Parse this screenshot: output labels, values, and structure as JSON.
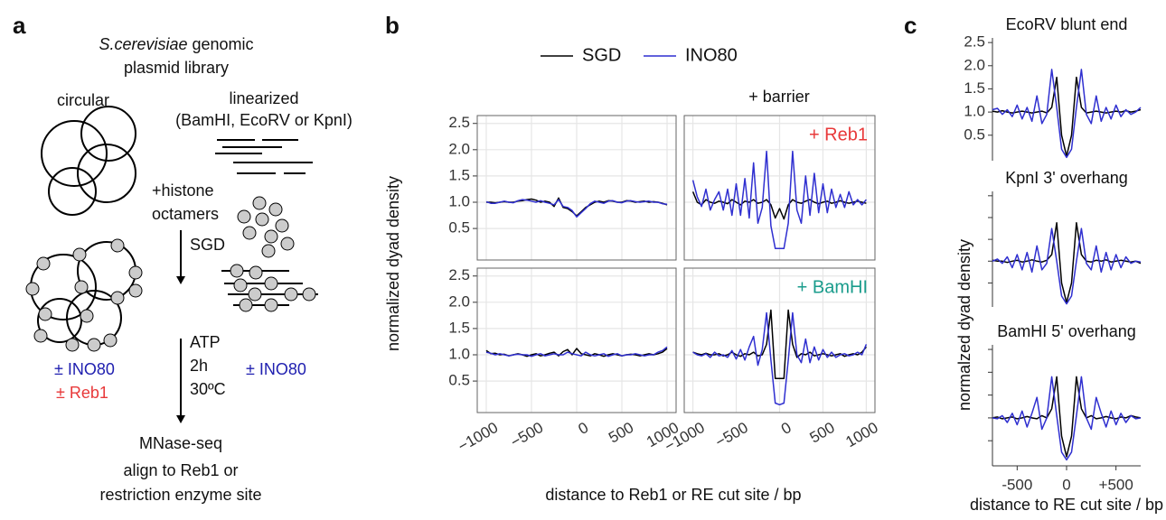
{
  "panel_labels": [
    "a",
    "b",
    "c"
  ],
  "diagram": {
    "title_species": "S.cerevisiae",
    "title_rest": " genomic",
    "title_line2": "plasmid library",
    "circular": "circular",
    "linearized": "linearized",
    "enzymes": "(BamHI, EcoRV or KpnI)",
    "histone_1": "+histone",
    "histone_2": "octamers",
    "sgd": "SGD",
    "atp": "ATP",
    "time": "2h",
    "temp": "30ºC",
    "ino80_left": "± INO80",
    "reb1_left": "± Reb1",
    "ino80_right": "± INO80",
    "mnase": "MNase-seq",
    "align_1": "align to Reb1 or",
    "align_2": "restriction enzyme site"
  },
  "panel_b": {
    "xlabel": "distance to Reb1 or RE cut site / bp",
    "ylabel": "normalized dyad density",
    "facet_header": "+ barrier"
  },
  "panel_c": {
    "xlabel": "distance to RE cut site / bp",
    "ylabel": "normalzed dyad density"
  },
  "chart_data": [
    {
      "type": "line",
      "xlim": [
        -1100,
        1100
      ],
      "ylim": [
        -0.1,
        2.65
      ],
      "xticks": [
        -1000,
        -500,
        0,
        500,
        1000
      ],
      "yticks": [
        0.5,
        {
          "value": 1.0,
          "label": "1.0"
        },
        1.5,
        {
          "value": 2.0,
          "label": "2.0"
        },
        2.5
      ],
      "x": [
        -1000,
        -950,
        -900,
        -850,
        -800,
        -750,
        -700,
        -650,
        -600,
        -550,
        -500,
        -450,
        -400,
        -350,
        -300,
        -250,
        -200,
        -150,
        -100,
        -50,
        0,
        50,
        100,
        150,
        200,
        250,
        300,
        350,
        400,
        450,
        500,
        550,
        600,
        650,
        700,
        750,
        800,
        850,
        900,
        950,
        1000
      ],
      "series": [
        {
          "name": "SGD",
          "color": "#000000",
          "values": [
            1.0,
            1.0,
            0.99,
            1.0,
            1.01,
            1.0,
            1.0,
            1.02,
            1.03,
            1.05,
            1.06,
            1.04,
            1.0,
            1.02,
            1.0,
            0.92,
            1.08,
            0.9,
            0.88,
            0.82,
            0.74,
            0.82,
            0.9,
            0.95,
            1.0,
            1.02,
            1.0,
            1.03,
            1.02,
            1.0,
            1.0,
            1.03,
            1.02,
            1.0,
            1.01,
            1.02,
            1.0,
            1.01,
            1.0,
            0.98,
            0.95
          ]
        },
        {
          "name": "INO80",
          "color": "#2f2fd0",
          "values": [
            1.01,
            0.98,
            0.98,
            1.0,
            1.02,
            1.0,
            0.99,
            1.03,
            1.05,
            1.04,
            1.02,
            1.0,
            1.03,
            1.0,
            0.98,
            0.95,
            1.05,
            0.92,
            0.9,
            0.84,
            0.72,
            0.8,
            0.88,
            0.97,
            1.02,
            1.0,
            0.98,
            1.02,
            1.03,
            1.0,
            0.99,
            1.02,
            1.03,
            1.01,
            1.0,
            1.01,
            1.02,
            1.0,
            1.0,
            0.97,
            0.96
          ]
        }
      ]
    },
    {
      "type": "line",
      "xlim": [
        -1100,
        1100
      ],
      "ylim": [
        -0.1,
        2.65
      ],
      "xticks": [
        -1000,
        -500,
        0,
        500,
        1000
      ],
      "yticks": [
        0.5,
        1.0,
        1.5,
        2.0,
        2.5
      ],
      "annotation": "+ Reb1",
      "annotation_color": "#e8393a",
      "x": [
        -1000,
        -950,
        -900,
        -850,
        -800,
        -750,
        -700,
        -650,
        -600,
        -550,
        -500,
        -450,
        -400,
        -350,
        -300,
        -250,
        -200,
        -150,
        -100,
        -50,
        0,
        50,
        100,
        150,
        200,
        250,
        300,
        350,
        400,
        450,
        500,
        550,
        600,
        650,
        700,
        750,
        800,
        850,
        900,
        950,
        1000
      ],
      "series": [
        {
          "color": "#000000",
          "values": [
            1.2,
            1.0,
            0.95,
            1.05,
            1.0,
            0.98,
            1.02,
            1.0,
            0.97,
            1.05,
            1.0,
            0.95,
            1.02,
            1.0,
            1.05,
            0.98,
            1.0,
            1.05,
            0.95,
            0.7,
            0.88,
            0.68,
            0.95,
            1.05,
            1.0,
            0.98,
            1.02,
            1.05,
            1.0,
            0.97,
            1.0,
            1.02,
            0.98,
            1.0,
            1.03,
            1.0,
            0.98,
            1.0,
            1.02,
            1.0,
            0.98
          ]
        },
        {
          "color": "#2f2fd0",
          "values": [
            1.42,
            1.1,
            0.92,
            1.25,
            0.85,
            1.05,
            1.2,
            0.85,
            1.25,
            0.75,
            1.35,
            0.75,
            1.45,
            0.7,
            1.75,
            0.6,
            0.9,
            1.97,
            0.55,
            0.12,
            0.12,
            0.12,
            0.6,
            1.97,
            0.85,
            0.6,
            1.5,
            0.75,
            1.55,
            0.8,
            1.35,
            0.8,
            1.25,
            0.9,
            1.15,
            0.9,
            1.2,
            0.95,
            1.05,
            0.95,
            1.05
          ]
        }
      ]
    },
    {
      "type": "line",
      "xlim": [
        -1100,
        1100
      ],
      "ylim": [
        -0.1,
        2.65
      ],
      "xticks": [
        {
          "value": -1000,
          "label": "−1000"
        },
        {
          "value": -500,
          "label": "−500"
        },
        0,
        500,
        1000
      ],
      "yticks": [
        0.5,
        {
          "value": 1.0,
          "label": "1.0"
        },
        1.5,
        {
          "value": 2.0,
          "label": "2.0"
        },
        2.5
      ],
      "x": [
        -1000,
        -950,
        -900,
        -850,
        -800,
        -750,
        -700,
        -650,
        -600,
        -550,
        -500,
        -450,
        -400,
        -350,
        -300,
        -250,
        -200,
        -150,
        -100,
        -50,
        0,
        50,
        100,
        150,
        200,
        250,
        300,
        350,
        400,
        450,
        500,
        550,
        600,
        650,
        700,
        750,
        800,
        850,
        900,
        950,
        1000
      ],
      "series": [
        {
          "color": "#000000",
          "values": [
            1.08,
            1.02,
            1.03,
            1.0,
            1.01,
            0.98,
            1.0,
            1.02,
            1.0,
            0.97,
            1.0,
            1.02,
            0.98,
            1.0,
            1.03,
            1.05,
            0.98,
            1.06,
            1.1,
            1.0,
            1.12,
            1.02,
            1.0,
            0.98,
            1.02,
            1.0,
            0.97,
            1.0,
            1.02,
            1.0,
            0.98,
            1.0,
            1.01,
            1.0,
            0.98,
            1.0,
            1.02,
            1.0,
            1.02,
            1.05,
            1.12
          ]
        },
        {
          "color": "#2f2fd0",
          "values": [
            1.05,
            1.03,
            1.0,
            1.02,
            1.0,
            0.98,
            1.0,
            1.01,
            1.0,
            1.0,
            0.97,
            1.0,
            1.02,
            0.98,
            1.0,
            1.02,
            1.0,
            1.0,
            1.05,
            1.02,
            1.0,
            0.98,
            1.05,
            1.0,
            0.98,
            1.0,
            1.02,
            0.97,
            1.0,
            1.02,
            0.98,
            1.0,
            1.0,
            1.02,
            1.0,
            0.98,
            1.0,
            1.0,
            1.05,
            1.08,
            1.15
          ]
        }
      ]
    },
    {
      "type": "line",
      "xlim": [
        -1100,
        1100
      ],
      "ylim": [
        -0.1,
        2.65
      ],
      "xticks": [
        {
          "value": -1000,
          "label": "−1000"
        },
        {
          "value": -500,
          "label": "−500"
        },
        0,
        500,
        1000
      ],
      "yticks": [
        0.5,
        1.0,
        1.5,
        2.0,
        2.5
      ],
      "annotation": "+ BamHI",
      "annotation_color": "#1a9c8c",
      "x": [
        -1000,
        -950,
        -900,
        -850,
        -800,
        -750,
        -700,
        -650,
        -600,
        -550,
        -500,
        -450,
        -400,
        -350,
        -300,
        -250,
        -200,
        -150,
        -100,
        -50,
        0,
        50,
        100,
        150,
        200,
        250,
        300,
        350,
        400,
        450,
        500,
        550,
        600,
        650,
        700,
        750,
        800,
        850,
        900,
        950,
        1000
      ],
      "series": [
        {
          "color": "#000000",
          "values": [
            1.05,
            1.02,
            1.0,
            1.03,
            1.0,
            1.0,
            1.02,
            0.98,
            1.0,
            1.05,
            1.0,
            0.97,
            1.02,
            1.0,
            1.05,
            0.98,
            1.0,
            1.2,
            1.85,
            0.55,
            0.55,
            0.55,
            1.85,
            1.2,
            0.95,
            1.02,
            1.0,
            1.05,
            0.98,
            1.0,
            1.02,
            1.0,
            0.98,
            1.0,
            1.02,
            0.97,
            1.0,
            1.02,
            1.0,
            1.05,
            1.15
          ]
        },
        {
          "color": "#2f2fd0",
          "values": [
            1.05,
            1.0,
            0.98,
            1.02,
            0.95,
            1.05,
            0.98,
            1.0,
            0.95,
            1.08,
            0.92,
            1.1,
            0.9,
            1.15,
            1.35,
            0.8,
            1.1,
            1.8,
            0.9,
            0.08,
            0.05,
            0.08,
            0.9,
            1.8,
            1.0,
            0.85,
            1.3,
            0.85,
            1.15,
            0.9,
            1.1,
            0.95,
            1.05,
            0.95,
            1.0,
            1.02,
            0.98,
            1.0,
            1.05,
            1.0,
            1.2
          ]
        }
      ]
    },
    {
      "type": "line",
      "title": "EcoRV blunt end",
      "xlim": [
        -750,
        750
      ],
      "ylim": [
        -0.05,
        2.6
      ],
      "yticks": [
        0.5,
        {
          "value": 1.0,
          "label": "1.0"
        },
        1.5,
        {
          "value": 2.0,
          "label": "2.0"
        },
        2.5
      ],
      "x": [
        -750,
        -700,
        -650,
        -600,
        -550,
        -500,
        -450,
        -400,
        -350,
        -300,
        -250,
        -200,
        -150,
        -100,
        -50,
        0,
        50,
        100,
        150,
        200,
        250,
        300,
        350,
        400,
        450,
        500,
        550,
        600,
        650,
        700,
        750
      ],
      "series": [
        {
          "color": "#000000",
          "values": [
            1.02,
            1.0,
            1.03,
            1.0,
            0.98,
            1.0,
            1.02,
            1.0,
            0.98,
            1.0,
            1.02,
            0.98,
            1.1,
            1.75,
            0.5,
            0.05,
            0.5,
            1.75,
            1.1,
            0.98,
            1.0,
            1.02,
            1.0,
            0.98,
            1.0,
            1.02,
            1.0,
            1.03,
            1.0,
            1.02,
            1.05
          ]
        },
        {
          "color": "#2f2fd0",
          "values": [
            1.05,
            1.08,
            0.95,
            1.05,
            0.9,
            1.15,
            0.85,
            1.1,
            0.8,
            1.35,
            0.75,
            0.95,
            1.92,
            1.1,
            0.2,
            0.02,
            0.2,
            1.1,
            1.92,
            0.95,
            0.75,
            1.35,
            0.8,
            1.1,
            0.85,
            1.15,
            0.9,
            1.05,
            0.95,
            1.0,
            1.1
          ]
        }
      ]
    },
    {
      "type": "line",
      "title": "KpnI 3' overhang",
      "xlim": [
        -750,
        750
      ],
      "ylim": [
        -0.05,
        2.6
      ],
      "yticks": [
        0.5,
        1.0,
        1.5,
        2.0,
        2.5
      ],
      "x": [
        -750,
        -700,
        -650,
        -600,
        -550,
        -500,
        -450,
        -400,
        -350,
        -300,
        -250,
        -200,
        -150,
        -100,
        -50,
        0,
        50,
        100,
        150,
        200,
        250,
        300,
        350,
        400,
        450,
        500,
        550,
        600,
        650,
        700,
        750
      ],
      "series": [
        {
          "color": "#000000",
          "values": [
            1.02,
            1.0,
            1.0,
            0.97,
            1.0,
            1.02,
            0.98,
            1.0,
            1.03,
            1.0,
            0.98,
            1.02,
            1.15,
            1.88,
            0.5,
            0.05,
            0.5,
            1.88,
            1.15,
            1.0,
            0.98,
            1.02,
            1.0,
            1.03,
            0.98,
            1.0,
            1.02,
            1.0,
            0.98,
            1.0,
            0.95
          ]
        },
        {
          "color": "#2f2fd0",
          "values": [
            1.0,
            1.05,
            0.95,
            1.1,
            0.85,
            1.15,
            0.8,
            1.2,
            0.75,
            1.35,
            0.8,
            0.95,
            1.75,
            1.0,
            0.2,
            0.02,
            0.2,
            1.0,
            1.75,
            0.95,
            0.8,
            1.35,
            0.75,
            1.2,
            0.8,
            1.15,
            0.85,
            1.1,
            0.95,
            1.0,
            0.98
          ]
        }
      ]
    },
    {
      "type": "line",
      "title": "BamHI 5' overhang",
      "xlim": [
        -750,
        750
      ],
      "ylim": [
        -0.05,
        2.6
      ],
      "xticks": [
        {
          "value": -500,
          "label": "-500"
        },
        0,
        {
          "value": 500,
          "label": "+500"
        }
      ],
      "yticks": [
        0.5,
        1.0,
        1.5,
        2.0,
        2.5
      ],
      "x": [
        -750,
        -700,
        -650,
        -600,
        -550,
        -500,
        -450,
        -400,
        -350,
        -300,
        -250,
        -200,
        -150,
        -100,
        -50,
        0,
        50,
        100,
        150,
        200,
        250,
        300,
        350,
        400,
        450,
        500,
        550,
        600,
        650,
        700,
        750
      ],
      "series": [
        {
          "color": "#000000",
          "values": [
            1.0,
            1.02,
            0.98,
            1.0,
            1.02,
            0.98,
            1.0,
            1.03,
            1.0,
            0.98,
            1.05,
            1.0,
            1.2,
            1.9,
            0.6,
            0.15,
            0.6,
            1.9,
            1.2,
            1.0,
            1.05,
            0.98,
            1.0,
            1.03,
            1.0,
            0.98,
            1.02,
            1.0,
            1.05,
            1.02,
            1.0
          ]
        },
        {
          "color": "#2f2fd0",
          "values": [
            1.0,
            0.98,
            1.05,
            0.9,
            1.1,
            0.85,
            1.15,
            0.8,
            1.1,
            1.45,
            0.75,
            1.0,
            1.9,
            1.05,
            0.25,
            0.08,
            0.25,
            1.05,
            1.9,
            1.0,
            0.75,
            1.45,
            1.1,
            0.8,
            1.15,
            0.85,
            1.1,
            0.9,
            1.05,
            0.98,
            1.0
          ]
        }
      ]
    }
  ]
}
